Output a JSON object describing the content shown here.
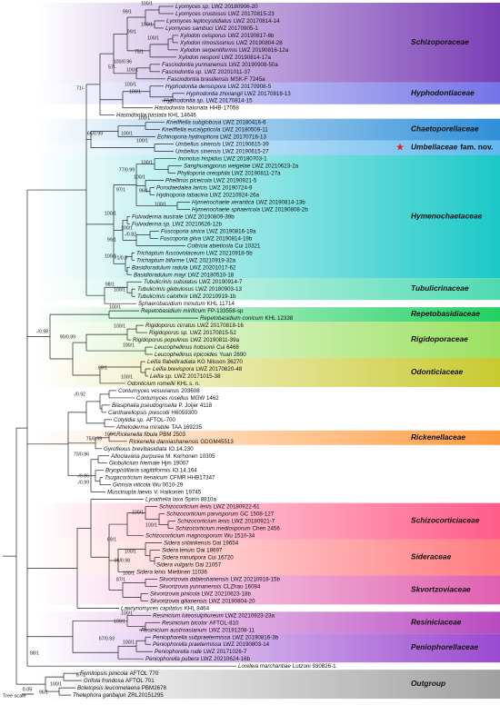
{
  "taxa": [
    {
      "name": "Lyomyces sp.",
      "voucher": "LWZ 20180906-20"
    },
    {
      "name": "Lyomyces crustosus",
      "voucher": "LWZ 20170815-23"
    },
    {
      "name": "Lyomyces leptocystidiatus",
      "voucher": "LWZ 20170814-14"
    },
    {
      "name": "Lyomyces sambuci",
      "voucher": "LWZ 20170905-1"
    },
    {
      "name": "Xylodon ovisporus",
      "voucher": "LWZ 20190817-6b"
    },
    {
      "name": "Xylodon rimosissimus",
      "voucher": "LWZ 20190804-28"
    },
    {
      "name": "Xylodon serpentiformis",
      "voucher": "LWZ 20190816-12a"
    },
    {
      "name": "Xylodon nesporii",
      "voucher": "LWZ 20190814-17a"
    },
    {
      "name": "Fasciodontia yunnanensis",
      "voucher": "LWZ 20190908-50a"
    },
    {
      "name": "Fasciodontia sp.",
      "voucher": "LWZ 20201011-37"
    },
    {
      "name": "Fasciodontia brasiliensis",
      "voucher": "MSK-F 7245a"
    },
    {
      "name": "Hyphodontia densispora",
      "voucher": "LWZ 20170908-5"
    },
    {
      "name": "Hyphodontia zhixiangii",
      "voucher": "LWZ 20170818-13"
    },
    {
      "name": "Hyphodontia sp.",
      "voucher": "LWZ 20170814-15"
    },
    {
      "name": "Hastodontia halonata",
      "voucher": "HHB-17058"
    },
    {
      "name": "Hastodontia hastata",
      "voucher": "KHL 14646"
    },
    {
      "name": "Kneiffiella subglobosa",
      "voucher": "LWZ 20180416-6"
    },
    {
      "name": "Kneiffiella eucalypticola",
      "voucher": "LWZ 20180509-11"
    },
    {
      "name": "Echinoporia hydnophora",
      "voucher": "LWZ 20170716-13"
    },
    {
      "name": "Umbellus sinensis",
      "voucher": "LWZ 20190615-39"
    },
    {
      "name": "Umbellus sinensis",
      "voucher": "LWZ 20190615-27"
    },
    {
      "name": "Inonotus hispidus",
      "voucher": "LWZ 20180703-1"
    },
    {
      "name": "Sanghuangporus weigelae",
      "voucher": "LWZ 20210623-2a"
    },
    {
      "name": "Phylloporia oreophila",
      "voucher": "LWZ 20190811-27a"
    },
    {
      "name": "Phellinus piceicola",
      "voucher": "LWZ 20190921-5"
    },
    {
      "name": "Porodaedalea laricis",
      "voucher": "LWZ 20190724-9"
    },
    {
      "name": "Hydnoporia tabacina",
      "voucher": "LWZ 20210924-26a"
    },
    {
      "name": "Hymenochaete xerantica",
      "voucher": "LWZ 20190814-13b"
    },
    {
      "name": "Hymenochaete sphaericola",
      "voucher": "LWZ 20190808-2b"
    },
    {
      "name": "Fulvoderma australe",
      "voucher": "LWZ 20190809-39b"
    },
    {
      "name": "Fulvoderma sp.",
      "voucher": "LWZ 20210626-12b"
    },
    {
      "name": "Fuscoporia sinica",
      "voucher": "LWZ 20190816-19a"
    },
    {
      "name": "Fuscoporia gilva",
      "voucher": "LWZ 20190814-19b"
    },
    {
      "name": "Coltricia abieticola",
      "voucher": "Cui 10321"
    },
    {
      "name": "Trichaptum fuscoviolaceum",
      "voucher": "LWZ 20210918-5b"
    },
    {
      "name": "Trichaptum biforme",
      "voucher": "LWZ 20210919-32a"
    },
    {
      "name": "Basidioradulum radula",
      "voucher": "LWZ 20201017-62"
    },
    {
      "name": "Basidioradulum mayi",
      "voucher": "LWZ 20180510-18"
    },
    {
      "name": "Tubulicrinis subulatus",
      "voucher": "LWZ 20190914-7"
    },
    {
      "name": "Tubulicrinis glebulosus",
      "voucher": "LWZ 20180903-13"
    },
    {
      "name": "Tubulicrinis calothrix",
      "voucher": "LWZ 20210919-1b"
    },
    {
      "name": "Sphaerobasidium minutum",
      "voucher": "KHL 11714"
    },
    {
      "name": "Repetobasidium mirificum",
      "voucher": "FP-133558-sp"
    },
    {
      "name": "Repetobasidium conicum",
      "voucher": "KHL 12338"
    },
    {
      "name": "Rigidoporus cirratus",
      "voucher": "LWZ 20170818-16"
    },
    {
      "name": "Rigidoporus sp.",
      "voucher": "LWZ 20170815-52"
    },
    {
      "name": "Rigidoporus populinus",
      "voucher": "LWZ 20190811-39a"
    },
    {
      "name": "Leucophellinus hobsonii",
      "voucher": "Cui 6468"
    },
    {
      "name": "Leucophellinus irpicoides",
      "voucher": "Yuan 2690"
    },
    {
      "name": "Leifia flabelliradiata",
      "voucher": "KG Nilsson 36270"
    },
    {
      "name": "Leifia brevispora",
      "voucher": "LWZ 20170820-48"
    },
    {
      "name": "Leifia sp.",
      "voucher": "LWZ 20171015-38"
    },
    {
      "name": "Odonticium romellii",
      "voucher": "KHL s. n."
    },
    {
      "name": "Contumyces vesuvianus",
      "voucher": "203608"
    },
    {
      "name": "Contumyces rosellus",
      "voucher": "MGW 1462"
    },
    {
      "name": "Blasiphalia pseudogrisella",
      "voucher": "P. Joijer 4118"
    },
    {
      "name": "Cantharellopsis prescotii",
      "voucher": "H6059300"
    },
    {
      "name": "Cotylidia sp.",
      "voucher": "AFTOL-700"
    },
    {
      "name": "Atheloderma mirabile",
      "voucher": "TAA 169235"
    },
    {
      "name": "Rickenella fibula",
      "voucher": "PBM 2503"
    },
    {
      "name": "Rickenella danxiashanensis",
      "voucher": "GDGM45513"
    },
    {
      "name": "Gyroflexus brevibasidiata",
      "voucher": "IO.14.230"
    },
    {
      "name": "Alloclavaria purpurea",
      "voucher": "M. Korhonen 10305"
    },
    {
      "name": "Globulicium hiemale",
      "voucher": "Hjm 19007"
    },
    {
      "name": "Bryopistillaria sagittiformis",
      "voucher": "IO.14.164"
    },
    {
      "name": "Tsugacorticium kenaicum",
      "voucher": "CFMR HHB17347"
    },
    {
      "name": "Ginnsia viticola",
      "voucher": "Wu 0010-29"
    },
    {
      "name": "Muscinupta laevis",
      "voucher": "V. Haikonen 19745"
    },
    {
      "name": "Lyoathelia laxa",
      "voucher": "Spirin 8810a"
    },
    {
      "name": "Schizocorticium lenis",
      "voucher": "LWZ 20180922-61"
    },
    {
      "name": "Schizocorticium parvisporum",
      "voucher": "GC 1508-127"
    },
    {
      "name": "Schizocorticium lenis",
      "voucher": "LWZ 20180921-7"
    },
    {
      "name": "Schizocorticium mediosporum",
      "voucher": "Chen 2456"
    },
    {
      "name": "Schizocorticium magnosporum",
      "voucher": "Wu 1510-34"
    },
    {
      "name": "Sidera srilankensis",
      "voucher": "Dai 19654"
    },
    {
      "name": "Sidera tenuis",
      "voucher": "Dai 18697"
    },
    {
      "name": "Sidera minutipora",
      "voucher": "Cui 16720"
    },
    {
      "name": "Sidera vulgaris",
      "voucher": "Dai 21057"
    },
    {
      "name": "Sidera lenis",
      "voucher": "Miettinen 11036"
    },
    {
      "name": "Skvortzovia dabieshanensis",
      "voucher": "LWZ 20210918-15b"
    },
    {
      "name": "Skvortzovia yunnanensis",
      "voucher": "CLZhao 16084"
    },
    {
      "name": "Skvortzovia pinicola",
      "voucher": "LWZ 20210623-18b"
    },
    {
      "name": "Skvortzovia qilianensis",
      "voucher": "LWZ 20190804-20"
    },
    {
      "name": "Lawrynomyces capitatus",
      "voucher": "KHL 8464"
    },
    {
      "name": "Resinicium luteosulphureum",
      "voucher": "LWZ 20210923-23a"
    },
    {
      "name": "Resinicium bicolor",
      "voucher": "AFTOL-810"
    },
    {
      "name": "Resinicium austroasianum",
      "voucher": "LWZ 20191208-11"
    },
    {
      "name": "Peniophorella subpraetermissa",
      "voucher": "LWZ 20190816-3b"
    },
    {
      "name": "Peniophorella praetermissa",
      "voucher": "LWZ 20190803-14"
    },
    {
      "name": "Peniophorella rude",
      "voucher": "LWZ 20171026-7"
    },
    {
      "name": "Peniophorella pubera",
      "voucher": "LWZ 20210624-16b"
    },
    {
      "name": "Loreleia marchantiae",
      "voucher": "Lutzoni 930826-1"
    },
    {
      "name": "Fomitopsis pinicola",
      "voucher": "AFTOL 770"
    },
    {
      "name": "Grifola frondosa",
      "voucher": "AFTOL 701"
    },
    {
      "name": "Boletopsis leucomelaena",
      "voucher": "PBM2678"
    },
    {
      "name": "Thelephora ganbajun",
      "voucher": "ZRL20151295"
    }
  ],
  "families": [
    {
      "name": "Schizoporaceae",
      "color": "#7a3fb5"
    },
    {
      "name": "Hyphodontiaceae",
      "color": "#7474e8"
    },
    {
      "name": "Chaetoporellaceae",
      "color": "#2f8fd8"
    },
    {
      "name": "Umbellaceae",
      "note": "fam. nov.",
      "color": "#62b8ee"
    },
    {
      "name": "Hymenochaetaceae",
      "color": "#1cc8c8"
    },
    {
      "name": "Tubulicrinaceae",
      "color": "#4fdab2"
    },
    {
      "name": "Repetobasidiaceae",
      "color": "#22d062"
    },
    {
      "name": "Rigidoporaceae",
      "color": "#9be060"
    },
    {
      "name": "Odonticiaceae",
      "color": "#c9c930"
    },
    {
      "name": "Rickenellaceae",
      "color": "#ff9a40"
    },
    {
      "name": "Schizocorticiaceae",
      "color": "#ff5c8a"
    },
    {
      "name": "Sideraceae",
      "color": "#ff7c80"
    },
    {
      "name": "Skvortzoviaceae",
      "color": "#e060b0"
    },
    {
      "name": "Resiniciaceae",
      "color": "#b84ac0"
    },
    {
      "name": "Peniophorellaceae",
      "color": "#9a4ad0"
    },
    {
      "name": "Outgroup",
      "color": "#a0a0a0"
    }
  ],
  "support_values": [
    "100/1",
    "99/1",
    "100/1",
    "99/1",
    "100/1",
    "75/1",
    "100/0.96",
    "100/1",
    "57/-",
    "100/1",
    "71/-",
    "100/1",
    "100/1",
    "65/0.99",
    "100/1",
    "100/1",
    "100/1",
    "77/0.99",
    "100/1",
    "97/1",
    "96/1",
    "100/1",
    "100/1",
    "100/1",
    "99/1",
    "-/0.82",
    "100/1",
    "71/0.8",
    "98/1",
    "100/1",
    "100/1",
    "-/0.98",
    "100/1",
    "90/0.99",
    "100/1",
    "99/1",
    "100/1",
    "-/0.92",
    "75/0.99",
    "100/1",
    "70/0.96",
    "-/0.86",
    "-/0.99",
    "100/1",
    "100/1",
    "69/1",
    "100/1",
    "96/0.98",
    "100/1",
    "87/1",
    "100/1",
    "100/1",
    "67/0.93",
    "100/1",
    "98/1",
    "87/1",
    "100/1",
    "96/1"
  ],
  "scale": {
    "label": "Tree scale",
    "value": 0.05
  }
}
